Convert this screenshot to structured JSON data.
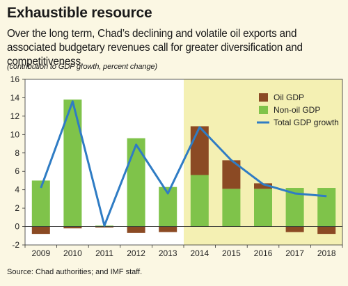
{
  "header": {
    "title": "Exhaustible resource",
    "subtitle": "Over the long term, Chad’s declining and volatile oil exports and associated budgetary revenues call for greater diversification and competitiveness.",
    "unit_note": "(contribution to GDP growth, percent change)"
  },
  "footer": {
    "source": "Source: Chad authorities; and IMF staff."
  },
  "colors": {
    "oil": "#8b4a24",
    "nonoil": "#7fc34a",
    "total": "#2f7cc4",
    "projection_shade": "#f4f0b3",
    "plot_bg": "#ffffff"
  },
  "chart_data": {
    "type": "bar",
    "categories": [
      "2009",
      "2010",
      "2011",
      "2012",
      "2013",
      "2014",
      "2015",
      "2016",
      "2017",
      "2018"
    ],
    "series": [
      {
        "name": "Oil GDP",
        "kind": "stacked-bar",
        "values": [
          -0.8,
          -0.2,
          -0.1,
          -0.7,
          -0.6,
          5.3,
          3.1,
          0.6,
          -0.6,
          -0.8
        ]
      },
      {
        "name": "Non-oil GDP",
        "kind": "stacked-bar",
        "values": [
          5.0,
          13.8,
          0.1,
          9.6,
          4.3,
          5.6,
          4.1,
          4.1,
          4.2,
          4.2
        ]
      },
      {
        "name": "Total GDP growth",
        "kind": "line",
        "values": [
          4.2,
          13.6,
          0.1,
          8.9,
          3.6,
          10.8,
          7.2,
          4.6,
          3.6,
          3.3
        ]
      }
    ],
    "ylim": [
      -2,
      16
    ],
    "yticks": [
      -2,
      0,
      2,
      4,
      6,
      8,
      10,
      12,
      14,
      16
    ],
    "shaded_from_category": "2014",
    "grid": false,
    "legend_position": "top-right"
  }
}
